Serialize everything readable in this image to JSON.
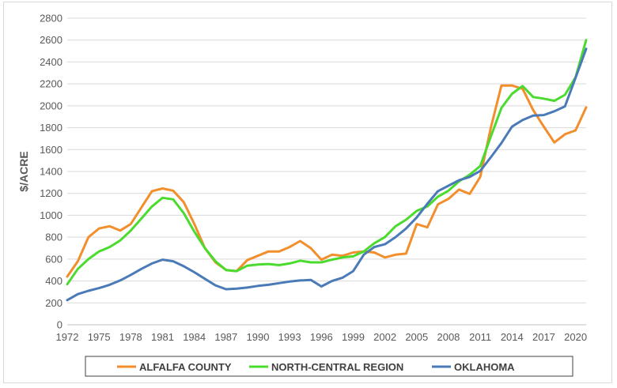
{
  "chart_data": {
    "type": "line",
    "title": "",
    "xlabel": "",
    "ylabel": "$/ACRE",
    "xlim": [
      1972,
      2021
    ],
    "ylim": [
      0,
      2800
    ],
    "yticks": [
      0,
      200,
      400,
      600,
      800,
      1000,
      1200,
      1400,
      1600,
      1800,
      2000,
      2200,
      2400,
      2600,
      2800
    ],
    "xticks": [
      1972,
      1975,
      1978,
      1981,
      1984,
      1987,
      1990,
      1993,
      1996,
      1999,
      2002,
      2005,
      2008,
      2011,
      2014,
      2017,
      2020
    ],
    "grid": "horizontal",
    "legend_position": "bottom",
    "x": [
      1972,
      1973,
      1974,
      1975,
      1976,
      1977,
      1978,
      1979,
      1980,
      1981,
      1982,
      1983,
      1984,
      1985,
      1986,
      1987,
      1988,
      1989,
      1990,
      1991,
      1992,
      1993,
      1994,
      1995,
      1996,
      1997,
      1998,
      1999,
      2000,
      2001,
      2002,
      2003,
      2004,
      2005,
      2006,
      2007,
      2008,
      2009,
      2010,
      2011,
      2012,
      2013,
      2014,
      2015,
      2016,
      2017,
      2018,
      2019,
      2020,
      2021
    ],
    "series": [
      {
        "name": "ALFALFA COUNTY",
        "color": "#f28e2b",
        "values": [
          440,
          580,
          800,
          880,
          900,
          860,
          920,
          1070,
          1220,
          1245,
          1225,
          1120,
          920,
          700,
          570,
          500,
          490,
          590,
          630,
          670,
          670,
          710,
          765,
          700,
          595,
          640,
          630,
          660,
          670,
          660,
          615,
          640,
          650,
          920,
          890,
          1100,
          1150,
          1235,
          1195,
          1350,
          1800,
          2185,
          2185,
          2155,
          1960,
          1810,
          1665,
          1740,
          1775,
          1985
        ]
      },
      {
        "name": "NORTH-CENTRAL REGION",
        "color": "#4bdb2f",
        "values": [
          370,
          510,
          600,
          670,
          710,
          770,
          860,
          970,
          1080,
          1160,
          1145,
          1020,
          850,
          700,
          580,
          500,
          490,
          540,
          550,
          555,
          545,
          560,
          585,
          570,
          570,
          595,
          615,
          625,
          670,
          745,
          800,
          900,
          960,
          1040,
          1080,
          1170,
          1225,
          1310,
          1370,
          1450,
          1720,
          1980,
          2110,
          2180,
          2080,
          2065,
          2045,
          2100,
          2260,
          2600
        ]
      },
      {
        "name": "OKLAHOMA",
        "color": "#4a7ab8",
        "values": [
          225,
          280,
          310,
          335,
          365,
          405,
          455,
          510,
          560,
          595,
          580,
          535,
          480,
          420,
          360,
          325,
          330,
          340,
          355,
          365,
          380,
          395,
          405,
          410,
          350,
          400,
          430,
          490,
          640,
          710,
          735,
          800,
          880,
          980,
          1105,
          1220,
          1270,
          1320,
          1350,
          1405,
          1530,
          1660,
          1810,
          1870,
          1910,
          1915,
          1950,
          1995,
          2255,
          2520
        ]
      }
    ]
  }
}
